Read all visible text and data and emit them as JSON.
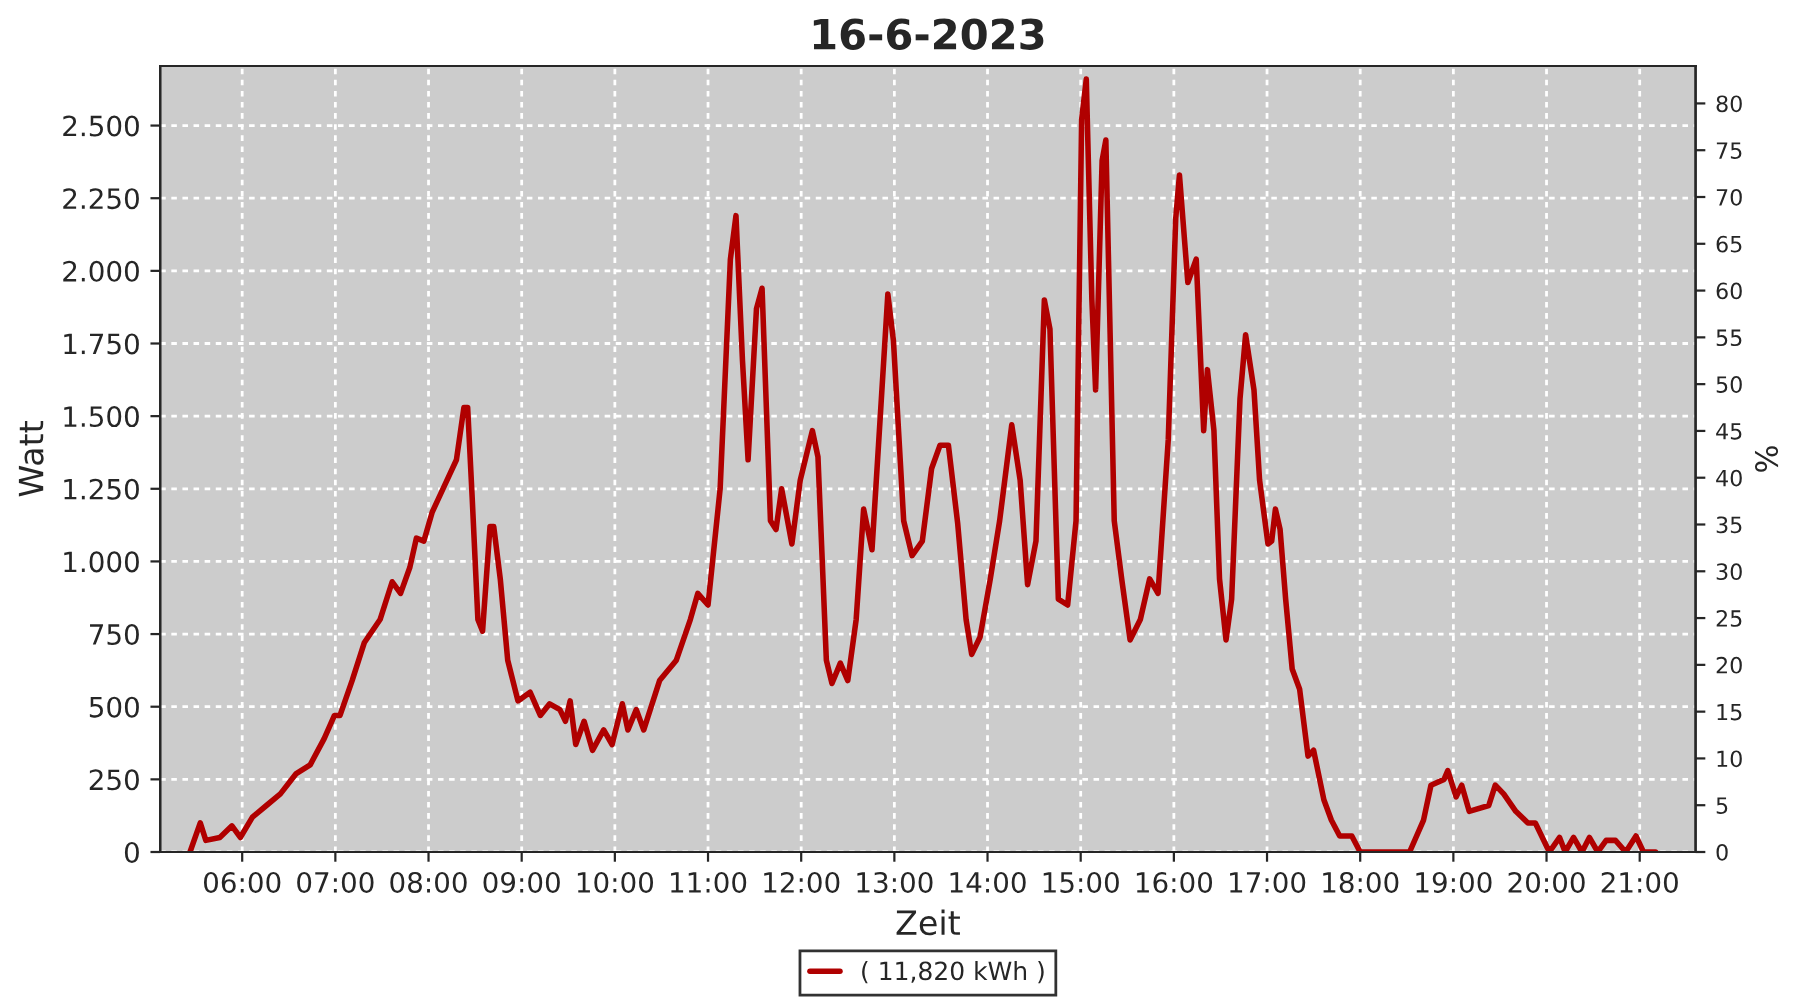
{
  "chart_data": {
    "type": "line",
    "title": "16-6-2023",
    "xlabel": "Zeit",
    "ylabel": "Watt",
    "y2label": "%",
    "xlim": [
      5.12,
      21.6
    ],
    "xticks": [
      {
        "value": 6,
        "label": "06:00"
      },
      {
        "value": 7,
        "label": "07:00"
      },
      {
        "value": 8,
        "label": "08:00"
      },
      {
        "value": 9,
        "label": "09:00"
      },
      {
        "value": 10,
        "label": "10:00"
      },
      {
        "value": 11,
        "label": "11:00"
      },
      {
        "value": 12,
        "label": "12:00"
      },
      {
        "value": 13,
        "label": "13:00"
      },
      {
        "value": 14,
        "label": "14:00"
      },
      {
        "value": 15,
        "label": "15:00"
      },
      {
        "value": 16,
        "label": "16:00"
      },
      {
        "value": 17,
        "label": "17:00"
      },
      {
        "value": 18,
        "label": "18:00"
      },
      {
        "value": 19,
        "label": "19:00"
      },
      {
        "value": 20,
        "label": "20:00"
      },
      {
        "value": 21,
        "label": "21:00"
      }
    ],
    "ylim": [
      0,
      2705
    ],
    "yticks": [
      0,
      250,
      500,
      750,
      {
        "value": 1000,
        "label": "1.000"
      },
      {
        "value": 1250,
        "label": "1.250"
      },
      {
        "value": 1500,
        "label": "1.500"
      },
      {
        "value": 1750,
        "label": "1.750"
      },
      {
        "value": 2000,
        "label": "2.000"
      },
      {
        "value": 2250,
        "label": "2.250"
      },
      {
        "value": 2500,
        "label": "2.500"
      }
    ],
    "y2lim": [
      0,
      84
    ],
    "y2ticks": [
      0,
      5,
      10,
      15,
      20,
      25,
      30,
      35,
      40,
      45,
      50,
      55,
      60,
      65,
      70,
      75,
      80
    ],
    "grid": true,
    "legend": "bottom",
    "line_style": "solid",
    "marker": "none",
    "series": [
      {
        "name": "( 11,820 kWh )",
        "color": "#b00000",
        "x": [
          5.44,
          5.55,
          5.61,
          5.76,
          5.89,
          5.98,
          6.11,
          6.26,
          6.41,
          6.58,
          6.73,
          6.88,
          6.99,
          7.05,
          7.18,
          7.31,
          7.48,
          7.61,
          7.7,
          7.8,
          7.87,
          7.95,
          8.04,
          8.17,
          8.3,
          8.38,
          8.42,
          8.47,
          8.53,
          8.58,
          8.66,
          8.7,
          8.77,
          8.85,
          8.96,
          9.09,
          9.2,
          9.3,
          9.41,
          9.47,
          9.52,
          9.58,
          9.67,
          9.76,
          9.88,
          9.97,
          10.08,
          10.14,
          10.23,
          10.31,
          10.48,
          10.66,
          10.81,
          10.89,
          11.0,
          11.13,
          11.24,
          11.3,
          11.37,
          11.43,
          11.52,
          11.58,
          11.67,
          11.73,
          11.79,
          11.9,
          11.99,
          12.12,
          12.18,
          12.27,
          12.33,
          12.42,
          12.5,
          12.59,
          12.67,
          12.76,
          12.82,
          12.93,
          12.99,
          13.1,
          13.19,
          13.3,
          13.4,
          13.49,
          13.58,
          13.68,
          13.77,
          13.83,
          13.92,
          14.03,
          14.13,
          14.26,
          14.35,
          14.43,
          14.52,
          14.61,
          14.67,
          14.76,
          14.86,
          14.95,
          15.01,
          15.06,
          15.12,
          15.16,
          15.23,
          15.27,
          15.36,
          15.44,
          15.53,
          15.64,
          15.74,
          15.83,
          15.94,
          16.02,
          16.06,
          16.15,
          16.24,
          16.32,
          16.36,
          16.43,
          16.49,
          16.56,
          16.62,
          16.71,
          16.77,
          16.86,
          16.92,
          17.01,
          17.05,
          17.09,
          17.14,
          17.2,
          17.27,
          17.35,
          17.44,
          17.5,
          17.61,
          17.69,
          17.78,
          17.91,
          18.0,
          18.53,
          18.68,
          18.76,
          18.9,
          18.94,
          19.03,
          19.09,
          19.17,
          19.38,
          19.45,
          19.54,
          19.67,
          19.8,
          19.88,
          20.03,
          20.14,
          20.2,
          20.29,
          20.38,
          20.46,
          20.55,
          20.64,
          20.74,
          20.85,
          20.96,
          21.04,
          21.17
        ],
        "values": [
          0,
          100,
          40,
          50,
          90,
          50,
          120,
          160,
          200,
          270,
          300,
          390,
          470,
          470,
          590,
          720,
          800,
          930,
          890,
          980,
          1080,
          1070,
          1170,
          1260,
          1350,
          1530,
          1530,
          1210,
          800,
          760,
          1120,
          1120,
          940,
          660,
          520,
          550,
          470,
          510,
          490,
          450,
          520,
          370,
          450,
          350,
          420,
          370,
          510,
          420,
          490,
          420,
          590,
          660,
          800,
          890,
          850,
          1250,
          2040,
          2190,
          1690,
          1350,
          1870,
          1940,
          1140,
          1110,
          1250,
          1060,
          1280,
          1450,
          1360,
          660,
          580,
          650,
          590,
          800,
          1180,
          1040,
          1350,
          1920,
          1760,
          1140,
          1020,
          1070,
          1320,
          1400,
          1400,
          1130,
          800,
          680,
          740,
          940,
          1140,
          1470,
          1280,
          920,
          1070,
          1900,
          1800,
          870,
          850,
          1140,
          2520,
          2660,
          1900,
          1590,
          2380,
          2450,
          1140,
          940,
          730,
          800,
          940,
          890,
          1420,
          2180,
          2330,
          1960,
          2040,
          1450,
          1660,
          1450,
          940,
          730,
          870,
          1560,
          1780,
          1590,
          1280,
          1060,
          1070,
          1180,
          1110,
          870,
          630,
          560,
          330,
          350,
          180,
          110,
          55,
          55,
          0,
          0,
          110,
          230,
          250,
          280,
          190,
          230,
          140,
          160,
          230,
          200,
          140,
          100,
          100,
          0,
          50,
          0,
          50,
          0,
          50,
          0,
          40,
          40,
          0,
          55,
          0,
          0
        ]
      }
    ]
  }
}
